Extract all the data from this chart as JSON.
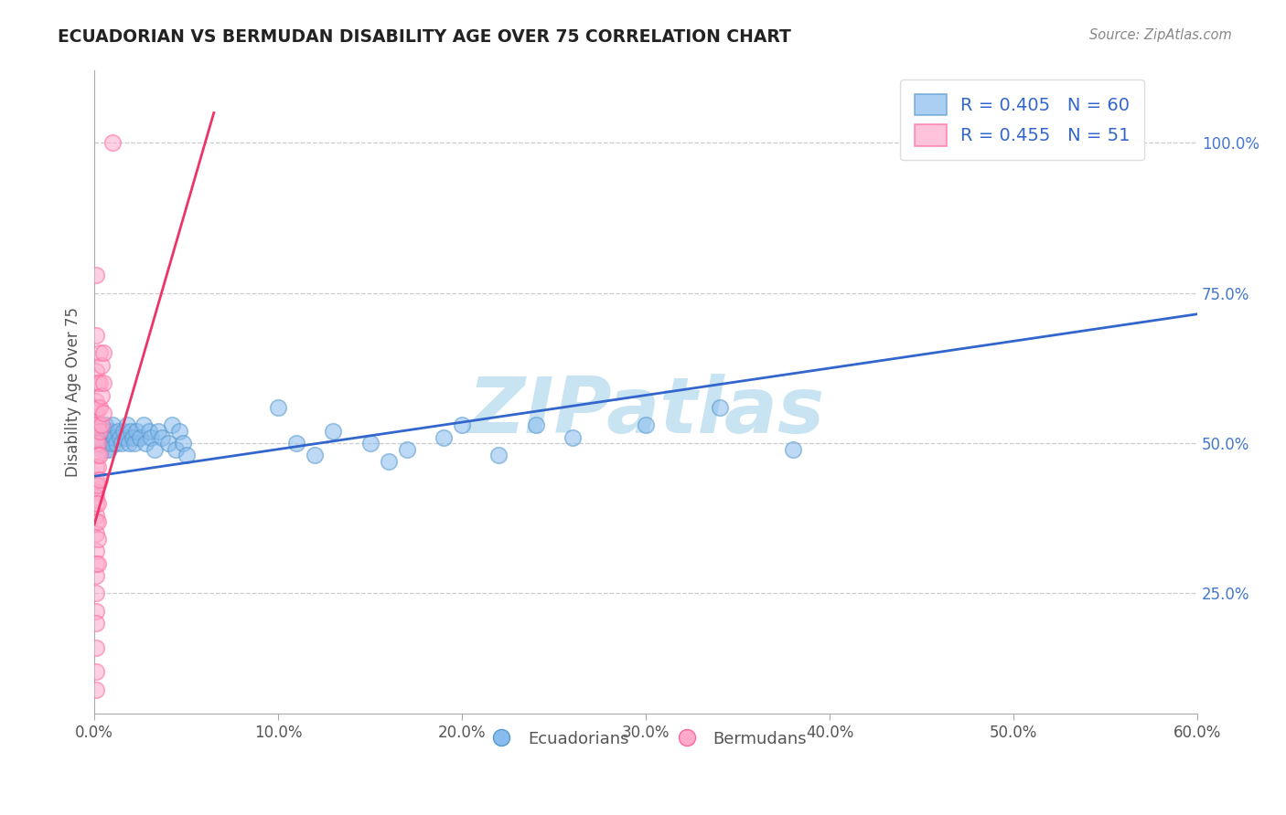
{
  "title": "ECUADORIAN VS BERMUDAN DISABILITY AGE OVER 75 CORRELATION CHART",
  "source": "Source: ZipAtlas.com",
  "ylabel": "Disability Age Over 75",
  "xlim": [
    0.0,
    0.6
  ],
  "ylim": [
    0.05,
    1.12
  ],
  "yticks": [
    0.25,
    0.5,
    0.75,
    1.0
  ],
  "ytick_labels": [
    "25.0%",
    "50.0%",
    "75.0%",
    "100.0%"
  ],
  "xticks": [
    0.0,
    0.1,
    0.2,
    0.3,
    0.4,
    0.5,
    0.6
  ],
  "xtick_labels": [
    "0.0%",
    "10.0%",
    "20.0%",
    "30.0%",
    "40.0%",
    "50.0%",
    "60.0%"
  ],
  "blue_color": "#88BBEE",
  "pink_color": "#FFAACC",
  "blue_edge": "#5599CC",
  "pink_edge": "#FF6699",
  "blue_R": 0.405,
  "blue_N": 60,
  "pink_R": 0.455,
  "pink_N": 51,
  "watermark": "ZIPatlas",
  "watermark_color": "#BBDDEE",
  "blue_scatter": [
    [
      0.002,
      0.52
    ],
    [
      0.003,
      0.5
    ],
    [
      0.003,
      0.53
    ],
    [
      0.004,
      0.51
    ],
    [
      0.004,
      0.49
    ],
    [
      0.005,
      0.52
    ],
    [
      0.005,
      0.5
    ],
    [
      0.006,
      0.51
    ],
    [
      0.006,
      0.53
    ],
    [
      0.006,
      0.49
    ],
    [
      0.007,
      0.5
    ],
    [
      0.007,
      0.52
    ],
    [
      0.008,
      0.51
    ],
    [
      0.008,
      0.49
    ],
    [
      0.009,
      0.52
    ],
    [
      0.01,
      0.5
    ],
    [
      0.01,
      0.53
    ],
    [
      0.011,
      0.51
    ],
    [
      0.012,
      0.5
    ],
    [
      0.013,
      0.52
    ],
    [
      0.014,
      0.51
    ],
    [
      0.015,
      0.5
    ],
    [
      0.016,
      0.52
    ],
    [
      0.017,
      0.51
    ],
    [
      0.018,
      0.53
    ],
    [
      0.019,
      0.5
    ],
    [
      0.02,
      0.52
    ],
    [
      0.021,
      0.51
    ],
    [
      0.022,
      0.5
    ],
    [
      0.023,
      0.52
    ],
    [
      0.025,
      0.51
    ],
    [
      0.027,
      0.53
    ],
    [
      0.028,
      0.5
    ],
    [
      0.03,
      0.52
    ],
    [
      0.031,
      0.51
    ],
    [
      0.033,
      0.49
    ],
    [
      0.035,
      0.52
    ],
    [
      0.037,
      0.51
    ],
    [
      0.04,
      0.5
    ],
    [
      0.042,
      0.53
    ],
    [
      0.044,
      0.49
    ],
    [
      0.046,
      0.52
    ],
    [
      0.048,
      0.5
    ],
    [
      0.05,
      0.48
    ],
    [
      0.1,
      0.56
    ],
    [
      0.11,
      0.5
    ],
    [
      0.12,
      0.48
    ],
    [
      0.13,
      0.52
    ],
    [
      0.15,
      0.5
    ],
    [
      0.16,
      0.47
    ],
    [
      0.17,
      0.49
    ],
    [
      0.19,
      0.51
    ],
    [
      0.2,
      0.53
    ],
    [
      0.22,
      0.48
    ],
    [
      0.24,
      0.53
    ],
    [
      0.26,
      0.51
    ],
    [
      0.3,
      0.53
    ],
    [
      0.34,
      0.56
    ],
    [
      0.38,
      0.49
    ],
    [
      0.53,
      1.0
    ]
  ],
  "pink_scatter": [
    [
      0.001,
      0.78
    ],
    [
      0.001,
      0.68
    ],
    [
      0.001,
      0.62
    ],
    [
      0.001,
      0.57
    ],
    [
      0.001,
      0.55
    ],
    [
      0.001,
      0.53
    ],
    [
      0.001,
      0.51
    ],
    [
      0.001,
      0.5
    ],
    [
      0.001,
      0.48
    ],
    [
      0.001,
      0.46
    ],
    [
      0.001,
      0.44
    ],
    [
      0.001,
      0.43
    ],
    [
      0.001,
      0.42
    ],
    [
      0.001,
      0.41
    ],
    [
      0.001,
      0.4
    ],
    [
      0.001,
      0.38
    ],
    [
      0.001,
      0.37
    ],
    [
      0.001,
      0.35
    ],
    [
      0.001,
      0.32
    ],
    [
      0.001,
      0.3
    ],
    [
      0.001,
      0.28
    ],
    [
      0.001,
      0.25
    ],
    [
      0.001,
      0.22
    ],
    [
      0.001,
      0.2
    ],
    [
      0.001,
      0.16
    ],
    [
      0.001,
      0.12
    ],
    [
      0.001,
      0.09
    ],
    [
      0.002,
      0.6
    ],
    [
      0.002,
      0.56
    ],
    [
      0.002,
      0.53
    ],
    [
      0.002,
      0.5
    ],
    [
      0.002,
      0.48
    ],
    [
      0.002,
      0.46
    ],
    [
      0.002,
      0.43
    ],
    [
      0.002,
      0.4
    ],
    [
      0.002,
      0.37
    ],
    [
      0.002,
      0.34
    ],
    [
      0.002,
      0.3
    ],
    [
      0.003,
      0.65
    ],
    [
      0.003,
      0.6
    ],
    [
      0.003,
      0.56
    ],
    [
      0.003,
      0.52
    ],
    [
      0.003,
      0.48
    ],
    [
      0.003,
      0.44
    ],
    [
      0.004,
      0.63
    ],
    [
      0.004,
      0.58
    ],
    [
      0.004,
      0.53
    ],
    [
      0.005,
      0.65
    ],
    [
      0.005,
      0.6
    ],
    [
      0.005,
      0.55
    ],
    [
      0.01,
      1.0
    ]
  ],
  "blue_line_x": [
    0.0,
    0.6
  ],
  "blue_line_y": [
    0.445,
    0.715
  ],
  "pink_line_x": [
    0.0,
    0.065
  ],
  "pink_line_y": [
    0.365,
    1.05
  ],
  "bg_color": "#FFFFFF",
  "grid_color": "#CCCCCC",
  "axis_color": "#AAAAAA"
}
